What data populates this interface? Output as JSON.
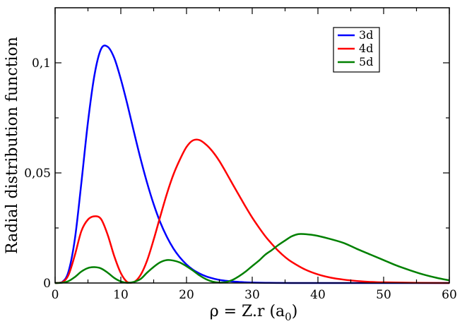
{
  "chart_data": {
    "type": "line",
    "xlabel": "ρ = Z.r (a",
    "xlabel_sub": "0",
    "xlabel_end": ")",
    "ylabel": "Radial distribution function",
    "xlim": [
      0,
      60
    ],
    "ylim": [
      0,
      0.125
    ],
    "xticks": [
      0,
      10,
      20,
      30,
      40,
      50,
      60
    ],
    "xtick_labels": [
      "0",
      "10",
      "20",
      "30",
      "40",
      "50",
      "60"
    ],
    "yticks": [
      0,
      0.05,
      0.1
    ],
    "ytick_labels": [
      "0",
      "0,05",
      "0,1"
    ],
    "grid": false,
    "legend_position": "top-right",
    "series": [
      {
        "name": "3d",
        "color": "#0000ff",
        "x": [
          0,
          1,
          2,
          3,
          4,
          5,
          6,
          7,
          8,
          9,
          10,
          11,
          12,
          13,
          14,
          15,
          16,
          17,
          18,
          19,
          20,
          21,
          22,
          23,
          24,
          25,
          26,
          27,
          28,
          29,
          30,
          32,
          34,
          36,
          38,
          40,
          45,
          50,
          55,
          60
        ],
        "y": [
          0,
          0.0003,
          0.0048,
          0.0198,
          0.0456,
          0.0731,
          0.0946,
          0.1063,
          0.1073,
          0.1022,
          0.0926,
          0.0811,
          0.0686,
          0.0565,
          0.0455,
          0.0358,
          0.0276,
          0.021,
          0.0157,
          0.0116,
          0.0084,
          0.006,
          0.0043,
          0.003,
          0.0021,
          0.0014,
          0.001,
          0.0007,
          0.0005,
          0.0003,
          0.0002,
          0.0001,
          5e-05,
          2e-05,
          1e-05,
          0,
          0,
          0,
          0,
          0
        ]
      },
      {
        "name": "4d",
        "color": "#ff0000",
        "x": [
          0,
          1,
          2,
          3,
          4,
          5,
          6,
          7,
          8,
          9,
          10,
          11,
          12,
          13,
          14,
          15,
          16,
          17,
          18,
          19,
          20,
          21,
          22,
          23,
          24,
          25,
          26,
          27,
          28,
          29,
          30,
          31,
          32,
          33,
          34,
          35,
          36,
          38,
          40,
          42,
          44,
          46,
          48,
          50,
          55,
          60
        ],
        "y": [
          0,
          0.0002,
          0.0034,
          0.0126,
          0.0236,
          0.0288,
          0.0303,
          0.029,
          0.0219,
          0.0122,
          0.0045,
          0.0004,
          0.0004,
          0.0036,
          0.0102,
          0.0197,
          0.0302,
          0.0404,
          0.0492,
          0.0561,
          0.0618,
          0.0648,
          0.0649,
          0.0628,
          0.0596,
          0.0554,
          0.0503,
          0.045,
          0.0398,
          0.0346,
          0.0297,
          0.0253,
          0.0212,
          0.0177,
          0.0145,
          0.0118,
          0.0096,
          0.0062,
          0.0039,
          0.0024,
          0.0015,
          0.0009,
          0.0005,
          0.0003,
          0.0001,
          0
        ]
      },
      {
        "name": "5d",
        "color": "#008000",
        "x": [
          0,
          1,
          2,
          3,
          4,
          5,
          6,
          7,
          8,
          9,
          10,
          11,
          12,
          13,
          14,
          15,
          16,
          17,
          18,
          19,
          20,
          21,
          22,
          23,
          24,
          25,
          26,
          27,
          28,
          29,
          30,
          31,
          32,
          33,
          34,
          35,
          36,
          37,
          38,
          39,
          40,
          42,
          44,
          46,
          48,
          50,
          52,
          54,
          56,
          58,
          60
        ],
        "y": [
          0,
          0.0001,
          0.0008,
          0.0027,
          0.0052,
          0.0068,
          0.0072,
          0.0066,
          0.0047,
          0.0023,
          0.0007,
          0.0001,
          0.0005,
          0.0018,
          0.0047,
          0.0073,
          0.0094,
          0.0104,
          0.0102,
          0.0093,
          0.0076,
          0.0056,
          0.0034,
          0.0017,
          0.0006,
          0.0002,
          0.0004,
          0.0014,
          0.0031,
          0.0052,
          0.0077,
          0.0101,
          0.0129,
          0.015,
          0.0173,
          0.0193,
          0.0212,
          0.0222,
          0.0222,
          0.0219,
          0.0214,
          0.0199,
          0.0181,
          0.0154,
          0.0129,
          0.0104,
          0.0079,
          0.0058,
          0.0039,
          0.0024,
          0.0012
        ]
      }
    ]
  }
}
